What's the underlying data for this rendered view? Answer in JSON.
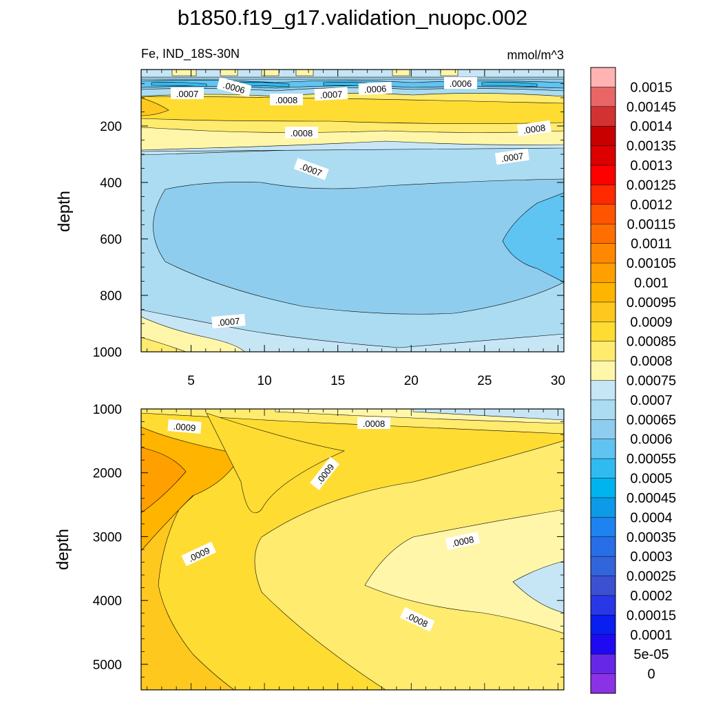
{
  "chart_data": {
    "type": "contour",
    "title": "b1850.f19_g17.validation_nuopc.002",
    "variable_label": "Fe, IND_18S-30N",
    "units_label": "mmol/m^3",
    "panels": [
      {
        "name": "upper",
        "ylabel": "depth",
        "ylim": [
          0,
          1000
        ],
        "yticks": [
          "200",
          "400",
          "600",
          "800",
          "1000"
        ],
        "xlim": [
          1,
          31
        ],
        "xticks": [
          "5",
          "10",
          "15",
          "20",
          "25",
          "30"
        ],
        "contour_labels": [
          ".0007",
          ".0006",
          ".0008",
          ".0007",
          ".0006",
          ".0006",
          ".0008",
          ".0008",
          ".0007",
          ".0007",
          ".0007"
        ]
      },
      {
        "name": "lower",
        "ylabel": "depth",
        "ylim": [
          1000,
          5400
        ],
        "yticks": [
          "1000",
          "2000",
          "3000",
          "4000",
          "5000"
        ],
        "contour_labels": [
          ".0009",
          ".0008",
          ".0009",
          ".0009",
          ".0008",
          ".0008"
        ]
      }
    ],
    "colorbar": {
      "labels": [
        "0.0015",
        "0.00145",
        "0.0014",
        "0.00135",
        "0.0013",
        "0.00125",
        "0.0012",
        "0.00115",
        "0.0011",
        "0.00105",
        "0.001",
        "0.00095",
        "0.0009",
        "0.00085",
        "0.0008",
        "0.00075",
        "0.0007",
        "0.00065",
        "0.0006",
        "0.00055",
        "0.0005",
        "0.00045",
        "0.0004",
        "0.00035",
        "0.0003",
        "0.00025",
        "0.0002",
        "0.00015",
        "0.0001",
        "5e-05",
        "0"
      ],
      "colors": [
        "#ffb3b3",
        "#e86666",
        "#d23232",
        "#c80000",
        "#dc0000",
        "#ff0000",
        "#ff2a00",
        "#ff5500",
        "#ff6e00",
        "#ff8800",
        "#ffa000",
        "#ffb400",
        "#ffc81e",
        "#ffdc32",
        "#ffeb6e",
        "#fff6aa",
        "#c6e6f6",
        "#abdcf1",
        "#8fcdee",
        "#5fc4f2",
        "#30bbf0",
        "#00b4f0",
        "#0d9ae6",
        "#1e82f0",
        "#286ee6",
        "#3264dc",
        "#3c50d2",
        "#2838e6",
        "#0a1ef0",
        "#1e0af0",
        "#6628e6",
        "#8c32e6"
      ]
    }
  }
}
